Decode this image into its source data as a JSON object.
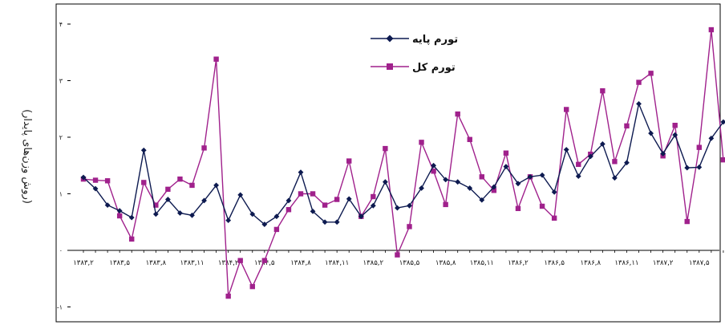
{
  "chart_data": {
    "type": "line",
    "ylabel": "(روش وزن‌های پایدار)",
    "ylim": [
      -1,
      4
    ],
    "yticks": [
      -1,
      0,
      1,
      2,
      3,
      4
    ],
    "ytick_labels": [
      "-۱",
      "۰",
      "۱",
      "۲",
      "۳",
      "۴"
    ],
    "grid": false,
    "legend_position": "top-center",
    "x": [
      "1383.2",
      "1383.3",
      "1383.4",
      "1383.5",
      "1383.6",
      "1383.7",
      "1383.8",
      "1383.9",
      "1383.10",
      "1383.11",
      "1383.12",
      "1384.1",
      "1384.2",
      "1384.3",
      "1384.4",
      "1384.5",
      "1384.6",
      "1384.7",
      "1384.8",
      "1384.9",
      "1384.10",
      "1384.11",
      "1384.12",
      "1385.1",
      "1385.2",
      "1385.3",
      "1385.4",
      "1385.5",
      "1385.6",
      "1385.7",
      "1385.8",
      "1385.9",
      "1385.10",
      "1385.11",
      "1385.12",
      "1386.1",
      "1386.2",
      "1386.3",
      "1386.4",
      "1386.5",
      "1386.6",
      "1386.7",
      "1386.8",
      "1386.9",
      "1386.10",
      "1386.11",
      "1386.12",
      "1387.1",
      "1387.2",
      "1387.3",
      "1387.4",
      "1387.5",
      "1387.6",
      "1387.7"
    ],
    "xtick_labels": [
      "۱۳۸۳,۲",
      "۱۳۸۳,۵",
      "۱۳۸۳,۸",
      "۱۳۸۳,۱۱",
      "۱۳۸۴,۲",
      "۱۳۸۴,۵",
      "۱۳۸۴,۸",
      "۱۳۸۴,۱۱",
      "۱۳۸۵,۲",
      "۱۳۸۵,۵",
      "۱۳۸۵,۸",
      "۱۳۸۵,۱۱",
      "۱۳۸۶,۲",
      "۱۳۸۶,۵",
      "۱۳۸۶,۸",
      "۱۳۸۶,۱۱",
      "۱۳۸۷,۲",
      "۱۳۸۷,۵"
    ],
    "series": [
      {
        "name": "تورم پایه",
        "color": "#0d1a50",
        "marker": "diamond",
        "values": [
          1.29,
          1.09,
          0.8,
          0.7,
          0.58,
          1.77,
          0.64,
          0.9,
          0.66,
          0.62,
          0.88,
          1.15,
          0.53,
          0.98,
          0.64,
          0.46,
          0.6,
          0.88,
          1.38,
          0.69,
          0.5,
          0.5,
          0.91,
          0.6,
          0.79,
          1.21,
          0.75,
          0.79,
          1.1,
          1.5,
          1.25,
          1.21,
          1.1,
          0.89,
          1.12,
          1.48,
          1.18,
          1.3,
          1.33,
          1.03,
          1.78,
          1.31,
          1.66,
          1.88,
          1.28,
          1.55,
          2.59,
          2.07,
          1.71,
          2.04,
          1.46,
          1.47,
          1.98,
          2.27
        ]
      },
      {
        "name": "تورم کل",
        "color": "#a0218c",
        "marker": "square",
        "values": [
          1.26,
          1.24,
          1.23,
          0.61,
          0.2,
          1.2,
          0.8,
          1.08,
          1.26,
          1.15,
          1.81,
          3.38,
          -0.81,
          -0.18,
          -0.64,
          -0.18,
          0.37,
          0.72,
          1.0,
          1.0,
          0.8,
          0.9,
          1.58,
          0.6,
          0.95,
          1.8,
          -0.08,
          0.42,
          1.91,
          1.4,
          0.81,
          2.41,
          1.96,
          1.3,
          1.06,
          1.72,
          0.74,
          1.3,
          0.78,
          0.57,
          2.49,
          1.52,
          1.7,
          2.82,
          1.57,
          2.2,
          2.97,
          3.13,
          1.67,
          2.21,
          0.51,
          1.82,
          3.9,
          1.6
        ]
      }
    ]
  }
}
